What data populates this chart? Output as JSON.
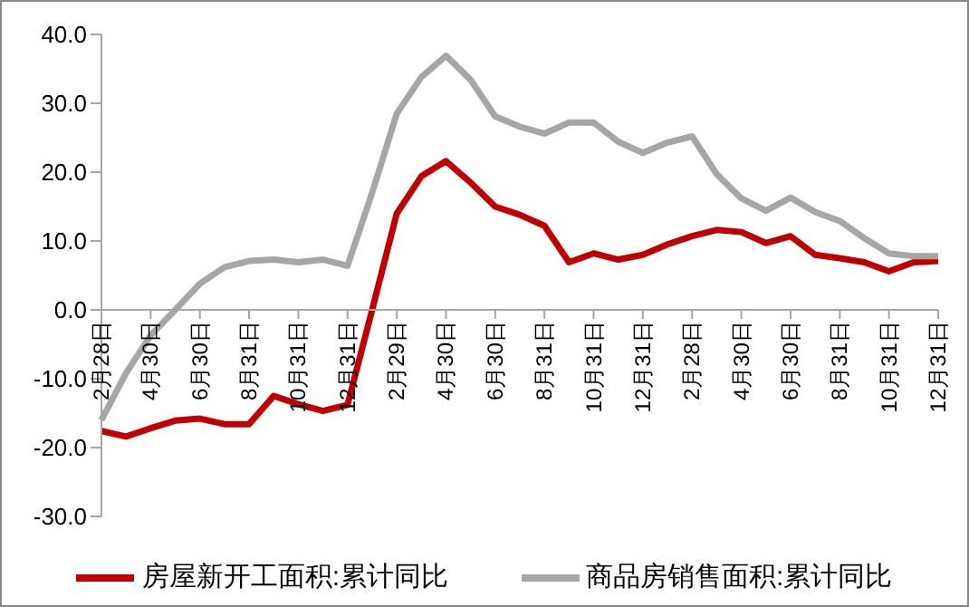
{
  "chart_data": {
    "type": "line",
    "categories": [
      "2月28日",
      null,
      "4月30日",
      null,
      "6月30日",
      null,
      "8月31日",
      null,
      "10月31日",
      null,
      "12月31日",
      null,
      "2月29日",
      null,
      "4月30日",
      null,
      "6月30日",
      null,
      "8月31日",
      null,
      "10月31日",
      null,
      "12月31日",
      null,
      "2月28日",
      null,
      "4月30日",
      null,
      "6月30日",
      null,
      "8月31日",
      null,
      "10月31日",
      null,
      "12月31日"
    ],
    "series": [
      {
        "name": "房屋新开工面积:累计同比",
        "color": "#c00000",
        "values": [
          -17.6,
          -18.4,
          -17.2,
          -16.1,
          -15.8,
          -16.6,
          -16.6,
          -12.5,
          -13.7,
          -14.7,
          -13.8,
          0.0,
          14.0,
          19.4,
          21.6,
          18.5,
          15.0,
          13.8,
          12.2,
          6.9,
          8.2,
          7.3,
          8.0,
          9.5,
          10.7,
          11.6,
          11.3,
          9.7,
          10.7,
          8.0,
          7.5,
          6.9,
          5.6,
          6.9,
          7.1
        ]
      },
      {
        "name": "商品房销售面积:累计同比",
        "color": "#a6a6a6",
        "values": [
          -16.0,
          -9.2,
          -3.7,
          0.0,
          3.8,
          6.2,
          7.1,
          7.3,
          6.9,
          7.3,
          6.4,
          17.0,
          28.5,
          33.8,
          36.9,
          33.4,
          28.1,
          26.6,
          25.6,
          27.2,
          27.2,
          24.4,
          22.8,
          24.3,
          25.2,
          19.7,
          16.2,
          14.4,
          16.3,
          14.2,
          12.9,
          10.4,
          8.2,
          7.8,
          7.8
        ]
      }
    ],
    "ylim": [
      -30,
      40
    ],
    "yticks": [
      {
        "value": -30,
        "label": "-30.0"
      },
      {
        "value": -20,
        "label": "-20.0"
      },
      {
        "value": -10,
        "label": "-10.0"
      },
      {
        "value": 0,
        "label": "0.0"
      },
      {
        "value": 10,
        "label": "10.0"
      },
      {
        "value": 20,
        "label": "20.0"
      },
      {
        "value": 30,
        "label": "30.0"
      },
      {
        "value": 40,
        "label": "40.0"
      }
    ],
    "legend": "bottom",
    "grid": false,
    "marker": "none",
    "line_style": "solid"
  }
}
